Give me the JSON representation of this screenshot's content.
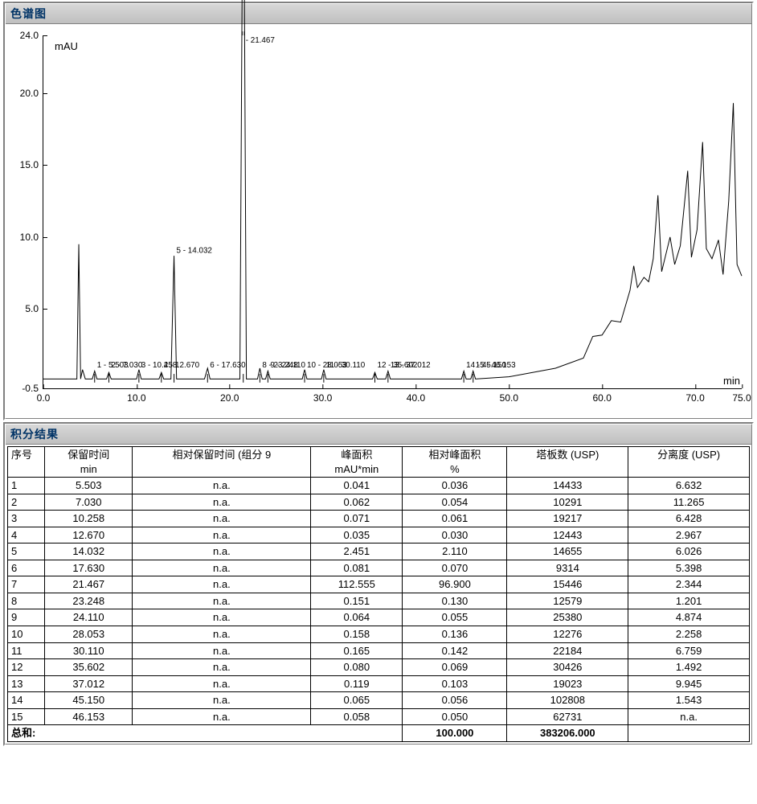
{
  "chart_panel": {
    "title": "色谱图",
    "y_label": "mAU",
    "x_label": "min",
    "xlim": [
      0,
      75
    ],
    "ylim": [
      -0.5,
      24
    ],
    "xtick_step": 10,
    "xticks": [
      "0.0",
      "10.0",
      "20.0",
      "30.0",
      "40.0",
      "50.0",
      "60.0",
      "70.0"
    ],
    "xtick_last": "75.0",
    "yticks": [
      "-0.5",
      "5.0",
      "10.0",
      "15.0",
      "20.0",
      "24.0"
    ],
    "trace_color": "#000000",
    "background_color": "#ffffff",
    "peak_markers": [
      {
        "x": 5.503,
        "label": "1 - 5.503"
      },
      {
        "x": 7.03,
        "label": "2 - 7.030"
      },
      {
        "x": 10.258,
        "label": "3 - 10.258"
      },
      {
        "x": 12.67,
        "label": "4 - 12.670"
      },
      {
        "x": 14.032,
        "label": "5 - 14.032",
        "big": true
      },
      {
        "x": 17.63,
        "label": "6 - 17.630"
      },
      {
        "x": 21.467,
        "label": "- 21.467",
        "main": true
      },
      {
        "x": 23.248,
        "label": "8 - 23.248"
      },
      {
        "x": 24.11,
        "label": "9 - 24.110"
      },
      {
        "x": 28.053,
        "label": "10 - 28.053"
      },
      {
        "x": 30.11,
        "label": "11 - 30.110"
      },
      {
        "x": 35.602,
        "label": "12 - 35.602"
      },
      {
        "x": 37.012,
        "label": "13 - 37.012"
      },
      {
        "x": 45.15,
        "label": "14 - 45.150"
      },
      {
        "x": 46.153,
        "label": "15 - 46.153"
      }
    ]
  },
  "table_panel": {
    "title": "积分结果",
    "columns": [
      {
        "header": "序号",
        "sub": ""
      },
      {
        "header": "保留时间",
        "sub": "min"
      },
      {
        "header": "相对保留时间 (组分 9",
        "sub": ""
      },
      {
        "header": "峰面积",
        "sub": "mAU*min"
      },
      {
        "header": "相对峰面积",
        "sub": "%"
      },
      {
        "header": "塔板数 (USP)",
        "sub": ""
      },
      {
        "header": "分离度 (USP)",
        "sub": ""
      }
    ],
    "rows": [
      [
        "1",
        "5.503",
        "n.a.",
        "0.041",
        "0.036",
        "14433",
        "6.632"
      ],
      [
        "2",
        "7.030",
        "n.a.",
        "0.062",
        "0.054",
        "10291",
        "11.265"
      ],
      [
        "3",
        "10.258",
        "n.a.",
        "0.071",
        "0.061",
        "19217",
        "6.428"
      ],
      [
        "4",
        "12.670",
        "n.a.",
        "0.035",
        "0.030",
        "12443",
        "2.967"
      ],
      [
        "5",
        "14.032",
        "n.a.",
        "2.451",
        "2.110",
        "14655",
        "6.026"
      ],
      [
        "6",
        "17.630",
        "n.a.",
        "0.081",
        "0.070",
        "9314",
        "5.398"
      ],
      [
        "7",
        "21.467",
        "n.a.",
        "112.555",
        "96.900",
        "15446",
        "2.344"
      ],
      [
        "8",
        "23.248",
        "n.a.",
        "0.151",
        "0.130",
        "12579",
        "1.201"
      ],
      [
        "9",
        "24.110",
        "n.a.",
        "0.064",
        "0.055",
        "25380",
        "4.874"
      ],
      [
        "10",
        "28.053",
        "n.a.",
        "0.158",
        "0.136",
        "12276",
        "2.258"
      ],
      [
        "11",
        "30.110",
        "n.a.",
        "0.165",
        "0.142",
        "22184",
        "6.759"
      ],
      [
        "12",
        "35.602",
        "n.a.",
        "0.080",
        "0.069",
        "30426",
        "1.492"
      ],
      [
        "13",
        "37.012",
        "n.a.",
        "0.119",
        "0.103",
        "19023",
        "9.945"
      ],
      [
        "14",
        "45.150",
        "n.a.",
        "0.065",
        "0.056",
        "102808",
        "1.543"
      ],
      [
        "15",
        "46.153",
        "n.a.",
        "0.058",
        "0.050",
        "62731",
        "n.a."
      ]
    ],
    "sum_label": "总和:",
    "sum_rel_area": "100.000",
    "sum_plates": "383206.000"
  }
}
